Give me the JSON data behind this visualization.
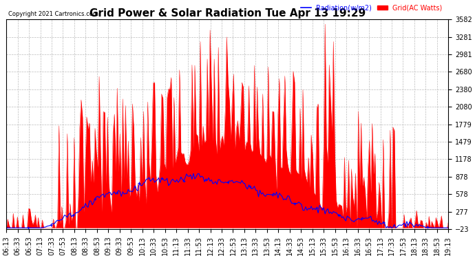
{
  "title": "Grid Power & Solar Radiation Tue Apr 13 19:29",
  "copyright": "Copyright 2021 Cartronics.com",
  "legend_radiation": "Radiation(w/m2)",
  "legend_grid": "Grid(AC Watts)",
  "ylabel_right_ticks": [
    3581.6,
    3281.2,
    2980.9,
    2680.5,
    2380.1,
    2079.7,
    1779.3,
    1478.9,
    1178.5,
    878.2,
    577.8,
    277.4,
    -23.0
  ],
  "ymin": -23.0,
  "ymax": 3581.6,
  "background_color": "#ffffff",
  "grid_color": "#bbbbbb",
  "fill_color": "#ff0000",
  "line_color": "#0000ff",
  "title_fontsize": 11,
  "tick_fontsize": 7,
  "xtick_labels": [
    "06:13",
    "06:33",
    "06:53",
    "07:13",
    "07:33",
    "07:53",
    "08:13",
    "08:33",
    "08:53",
    "09:13",
    "09:33",
    "09:53",
    "10:13",
    "10:33",
    "10:53",
    "11:13",
    "11:33",
    "11:53",
    "12:13",
    "12:33",
    "12:53",
    "13:13",
    "13:33",
    "13:53",
    "14:13",
    "14:33",
    "14:53",
    "15:13",
    "15:33",
    "15:53",
    "16:13",
    "16:33",
    "16:53",
    "17:13",
    "17:33",
    "17:53",
    "18:13",
    "18:33",
    "18:53",
    "19:13"
  ]
}
